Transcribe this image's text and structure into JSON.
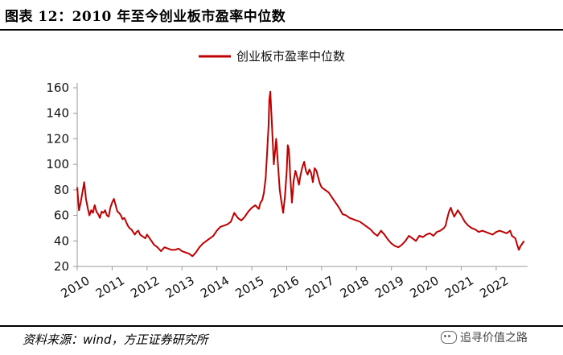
{
  "header": {
    "title": "图表 12：2010 年至今创业板市盈率中位数"
  },
  "footer": {
    "source": "资料来源：wind，方正证券研究所",
    "watermark": "追寻价值之路",
    "watermark_icon": "wechat-icon"
  },
  "chart_data": {
    "type": "line",
    "title": "",
    "xlabel": "",
    "ylabel": "",
    "ylim": [
      20,
      160
    ],
    "yticks": [
      20,
      40,
      60,
      80,
      100,
      120,
      140,
      160
    ],
    "xlim": [
      2010,
      2022.9
    ],
    "xticks": [
      "2010",
      "2011",
      "2012",
      "2013",
      "2014",
      "2015",
      "2016",
      "2017",
      "2018",
      "2019",
      "2020",
      "2021",
      "2022"
    ],
    "legend_position": "top",
    "grid": false,
    "color": "#C00000",
    "series": [
      {
        "name": "创业板市盈率中位数",
        "x": [
          2010.0,
          2010.05,
          2010.1,
          2010.15,
          2010.2,
          2010.25,
          2010.3,
          2010.35,
          2010.4,
          2010.45,
          2010.5,
          2010.55,
          2010.6,
          2010.65,
          2010.7,
          2010.75,
          2010.8,
          2010.85,
          2010.9,
          2010.95,
          2011.0,
          2011.05,
          2011.1,
          2011.15,
          2011.2,
          2011.25,
          2011.3,
          2011.35,
          2011.4,
          2011.45,
          2011.5,
          2011.55,
          2011.6,
          2011.65,
          2011.7,
          2011.75,
          2011.8,
          2011.85,
          2011.9,
          2011.95,
          2012.0,
          2012.1,
          2012.2,
          2012.3,
          2012.4,
          2012.5,
          2012.6,
          2012.7,
          2012.8,
          2012.9,
          2013.0,
          2013.1,
          2013.2,
          2013.3,
          2013.4,
          2013.5,
          2013.6,
          2013.7,
          2013.8,
          2013.9,
          2014.0,
          2014.1,
          2014.2,
          2014.3,
          2014.4,
          2014.5,
          2014.6,
          2014.7,
          2014.8,
          2014.9,
          2015.0,
          2015.1,
          2015.2,
          2015.25,
          2015.3,
          2015.35,
          2015.4,
          2015.42,
          2015.45,
          2015.48,
          2015.5,
          2015.53,
          2015.56,
          2015.6,
          2015.63,
          2015.66,
          2015.7,
          2015.75,
          2015.8,
          2015.85,
          2015.9,
          2015.95,
          2016.0,
          2016.03,
          2016.06,
          2016.1,
          2016.15,
          2016.2,
          2016.25,
          2016.3,
          2016.35,
          2016.4,
          2016.45,
          2016.5,
          2016.55,
          2016.6,
          2016.65,
          2016.7,
          2016.75,
          2016.8,
          2016.85,
          2016.9,
          2016.95,
          2017.0,
          2017.1,
          2017.2,
          2017.3,
          2017.4,
          2017.5,
          2017.6,
          2017.7,
          2017.8,
          2017.9,
          2018.0,
          2018.1,
          2018.2,
          2018.3,
          2018.4,
          2018.5,
          2018.6,
          2018.7,
          2018.8,
          2018.9,
          2019.0,
          2019.1,
          2019.2,
          2019.3,
          2019.4,
          2019.5,
          2019.6,
          2019.7,
          2019.8,
          2019.9,
          2020.0,
          2020.1,
          2020.2,
          2020.3,
          2020.4,
          2020.5,
          2020.55,
          2020.6,
          2020.65,
          2020.7,
          2020.75,
          2020.8,
          2020.9,
          2021.0,
          2021.1,
          2021.2,
          2021.3,
          2021.4,
          2021.5,
          2021.6,
          2021.7,
          2021.8,
          2021.9,
          2022.0,
          2022.1,
          2022.2,
          2022.3,
          2022.4,
          2022.45,
          2022.5,
          2022.55,
          2022.6,
          2022.65,
          2022.7,
          2022.75,
          2022.8
        ],
        "values": [
          82,
          64,
          70,
          78,
          86,
          73,
          66,
          60,
          64,
          62,
          68,
          63,
          61,
          58,
          63,
          62,
          64,
          60,
          59,
          66,
          70,
          73,
          68,
          63,
          62,
          60,
          57,
          58,
          55,
          52,
          50,
          49,
          47,
          45,
          47,
          48,
          45,
          44,
          43,
          42,
          45,
          41,
          37,
          35,
          32,
          35,
          34,
          33,
          33,
          34,
          32,
          31,
          30,
          28,
          31,
          35,
          38,
          40,
          42,
          44,
          48,
          51,
          52,
          53,
          55,
          62,
          58,
          56,
          59,
          63,
          66,
          68,
          65,
          70,
          72,
          78,
          90,
          100,
          115,
          130,
          150,
          157,
          140,
          118,
          100,
          108,
          120,
          100,
          80,
          70,
          62,
          75,
          95,
          115,
          112,
          92,
          70,
          87,
          95,
          90,
          84,
          92,
          98,
          102,
          95,
          92,
          96,
          93,
          86,
          97,
          95,
          90,
          85,
          82,
          80,
          78,
          74,
          70,
          66,
          61,
          60,
          58,
          57,
          56,
          55,
          53,
          51,
          49,
          46,
          44,
          48,
          45,
          41,
          38,
          36,
          35,
          37,
          40,
          44,
          42,
          40,
          44,
          43,
          45,
          46,
          44,
          47,
          48,
          50,
          52,
          58,
          63,
          66,
          62,
          59,
          64,
          60,
          55,
          52,
          50,
          49,
          47,
          48,
          47,
          46,
          45,
          47,
          48,
          47,
          46,
          48,
          44,
          43,
          42,
          37,
          33,
          36,
          38,
          40
        ]
      }
    ]
  }
}
